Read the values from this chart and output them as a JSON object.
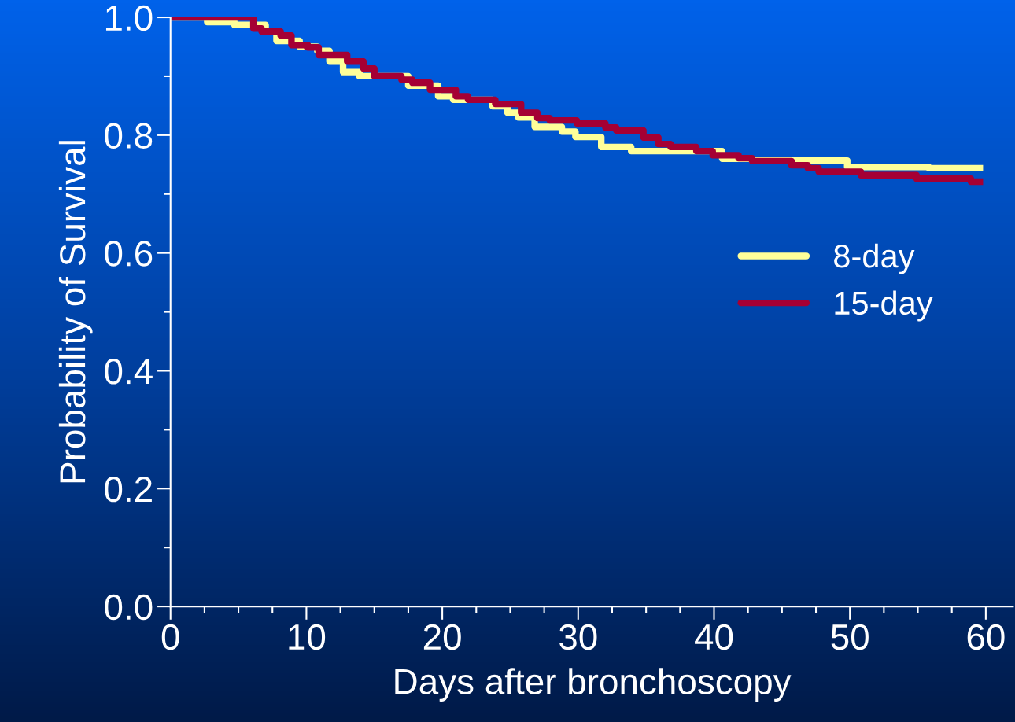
{
  "chart_data": {
    "type": "step",
    "xlabel": "Days after bronchoscopy",
    "ylabel": "Probability of Survival",
    "xlim": [
      0,
      62
    ],
    "ylim": [
      0,
      1.0
    ],
    "xticks": [
      0,
      {
        "value": 2.5,
        "label": null
      },
      {
        "value": 5,
        "label": null
      },
      {
        "value": 7.5,
        "label": null
      },
      10,
      {
        "value": 12.5,
        "label": null
      },
      {
        "value": 15,
        "label": null
      },
      {
        "value": 17.5,
        "label": null
      },
      20,
      {
        "value": 22.5,
        "label": null
      },
      {
        "value": 25,
        "label": null
      },
      {
        "value": 27.5,
        "label": null
      },
      30,
      {
        "value": 32.5,
        "label": null
      },
      {
        "value": 35,
        "label": null
      },
      {
        "value": 37.5,
        "label": null
      },
      40,
      {
        "value": 42.5,
        "label": null
      },
      {
        "value": 45,
        "label": null
      },
      {
        "value": 47.5,
        "label": null
      },
      50,
      {
        "value": 52.5,
        "label": null
      },
      {
        "value": 55,
        "label": null
      },
      {
        "value": 57.5,
        "label": null
      },
      60
    ],
    "yticks": [
      {
        "value": 0,
        "label": "0.0"
      },
      {
        "value": 0.1,
        "label": null
      },
      0.2,
      {
        "value": 0.3,
        "label": null
      },
      0.4,
      {
        "value": 0.5,
        "label": null
      },
      0.6,
      {
        "value": 0.7,
        "label": null
      },
      0.8,
      {
        "value": 0.9,
        "label": null
      },
      {
        "value": 1.0,
        "label": "1.0"
      }
    ],
    "grid": false,
    "legend": "right",
    "line_style": "solid",
    "marker": "none",
    "series": [
      {
        "name": "8-day",
        "color": "#ffff99",
        "x": [
          0,
          2.7,
          4.7,
          7.0,
          7.8,
          9.5,
          10.8,
          11.7,
          12.7,
          13.9,
          17.5,
          19.7,
          20.8,
          23.7,
          24.8,
          25.6,
          26.8,
          28.8,
          29.8,
          31.7,
          33.9,
          40.6,
          42.8,
          49.8,
          55.8,
          59.8
        ],
        "values": [
          1.0,
          0.992,
          0.987,
          0.975,
          0.96,
          0.95,
          0.943,
          0.925,
          0.907,
          0.9,
          0.884,
          0.866,
          0.86,
          0.849,
          0.838,
          0.83,
          0.814,
          0.806,
          0.797,
          0.78,
          0.773,
          0.76,
          0.757,
          0.746,
          0.744,
          0.744
        ]
      },
      {
        "name": "15-day",
        "color": "#a50034",
        "x": [
          0,
          6.1,
          6.7,
          8.1,
          8.9,
          10.1,
          10.9,
          13.0,
          14.2,
          15.0,
          17.0,
          17.8,
          19.1,
          21.0,
          21.9,
          23.9,
          25.8,
          27.0,
          27.9,
          29.9,
          32.0,
          32.8,
          34.8,
          35.9,
          36.8,
          38.7,
          39.9,
          41.8,
          42.8,
          45.7,
          46.9,
          47.7,
          50.8,
          54.9,
          58.9,
          59.8
        ],
        "values": [
          1.0,
          0.981,
          0.976,
          0.969,
          0.953,
          0.949,
          0.936,
          0.925,
          0.913,
          0.9,
          0.894,
          0.889,
          0.877,
          0.866,
          0.86,
          0.853,
          0.838,
          0.829,
          0.825,
          0.82,
          0.813,
          0.808,
          0.796,
          0.785,
          0.78,
          0.773,
          0.766,
          0.761,
          0.756,
          0.749,
          0.744,
          0.738,
          0.732,
          0.726,
          0.721,
          0.721
        ]
      }
    ]
  }
}
